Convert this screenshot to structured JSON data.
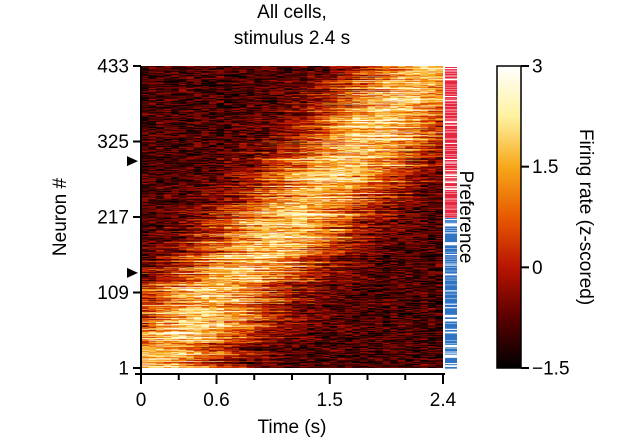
{
  "chart_data": {
    "type": "heatmap",
    "title_lines": [
      "All cells,",
      "stimulus 2.4 s"
    ],
    "xlabel": "Time (s)",
    "ylabel": "Neuron #",
    "xlim": [
      0,
      2.4
    ],
    "ylim": [
      1,
      433
    ],
    "x_ticks_labeled": [
      {
        "value": 0,
        "label": "0"
      },
      {
        "value": 0.6,
        "label": "0.6"
      },
      {
        "value": 1.5,
        "label": "1.5"
      },
      {
        "value": 2.4,
        "label": "2.4"
      }
    ],
    "x_ticks_minor": [
      0.3,
      0.9,
      1.2,
      1.8,
      2.1
    ],
    "y_ticks": [
      {
        "value": 1,
        "label": "1"
      },
      {
        "value": 109,
        "label": "109"
      },
      {
        "value": 217,
        "label": "217"
      },
      {
        "value": 325,
        "label": "325"
      },
      {
        "value": 433,
        "label": "433"
      }
    ],
    "marker_neurons": [
      137,
      297
    ],
    "side_bar": {
      "label": "Preference",
      "segments": [
        {
          "from": 1,
          "to": 216,
          "color": "#2f73c4"
        },
        {
          "from": 217,
          "to": 433,
          "color": "#e8253e"
        }
      ]
    },
    "colorbar": {
      "label": "Firing rate (z-scored)",
      "range": [
        -1.5,
        3
      ],
      "ticks": [
        {
          "value": 3,
          "label": "3"
        },
        {
          "value": 1.5,
          "label": "1.5"
        },
        {
          "value": 0,
          "label": "0"
        },
        {
          "value": -1.5,
          "label": "−1.5"
        }
      ],
      "colormap": "hot",
      "colors": [
        "#000000",
        "#5a0000",
        "#b81400",
        "#e85a00",
        "#f7a81a",
        "#fff2a0",
        "#ffffff"
      ]
    },
    "activity_pattern": {
      "description_rows": "neurons sorted by peak time",
      "peak_time_at_neuron_1": 0.05,
      "peak_time_at_neuron_433": 2.35
    }
  }
}
